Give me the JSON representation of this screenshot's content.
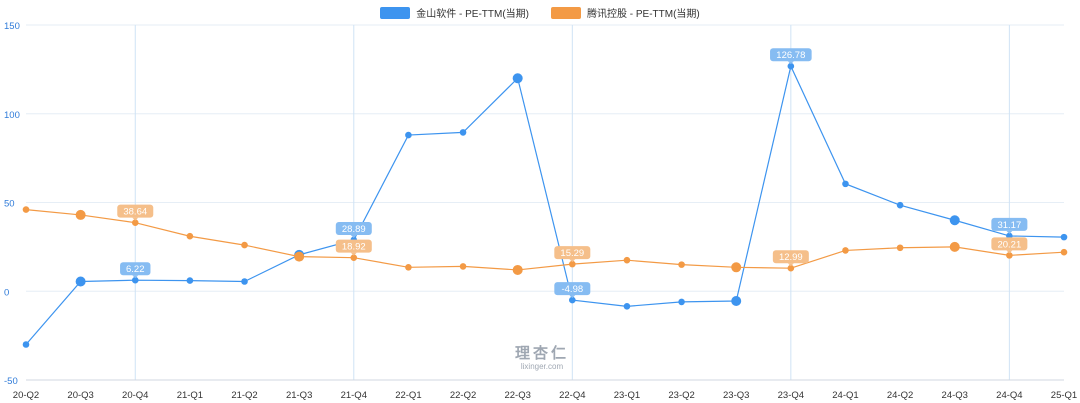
{
  "legend": {
    "s0": "金山软件 - PE-TTM(当期)",
    "s1": "腾讯控股 - PE-TTM(当期)"
  },
  "watermark": {
    "name": "理杏仁",
    "url": "lixinger.com"
  },
  "colors": {
    "s0": "#3d94ef",
    "s1": "#f39a45",
    "label_s0": "#86bcf2",
    "label_s1": "#f5bf8a",
    "grid": "#e6eef6",
    "vgrid": "#cfe3f5"
  },
  "chart_data": {
    "type": "line",
    "title": "",
    "xlabel": "",
    "ylabel": "",
    "ylim": [
      -50,
      150
    ],
    "yticks": [
      -50,
      0,
      50,
      100,
      150
    ],
    "x": [
      "20-Q2",
      "20-Q3",
      "20-Q4",
      "21-Q1",
      "21-Q2",
      "21-Q3",
      "21-Q4",
      "22-Q1",
      "22-Q2",
      "22-Q3",
      "22-Q4",
      "23-Q1",
      "23-Q2",
      "23-Q3",
      "23-Q4",
      "24-Q1",
      "24-Q2",
      "24-Q3",
      "24-Q4",
      "25-Q1"
    ],
    "highlight_categories": [
      "20-Q4",
      "21-Q4",
      "22-Q4",
      "23-Q4",
      "24-Q4"
    ],
    "series": [
      {
        "name": "金山软件 - PE-TTM(当期)",
        "values": [
          -30,
          5.5,
          6.22,
          6,
          5.5,
          20.5,
          28.89,
          88,
          89.5,
          120,
          -4.98,
          -8.5,
          -6,
          -5.5,
          126.78,
          60.5,
          48.5,
          40,
          31.17,
          30.5
        ],
        "labels": {
          "2": "6.22",
          "6": "28.89",
          "10": "-4.98",
          "14": "126.78",
          "18": "31.17"
        },
        "big_points": [
          1,
          5,
          9,
          13,
          17
        ]
      },
      {
        "name": "腾讯控股 - PE-TTM(当期)",
        "values": [
          46,
          43,
          38.64,
          31,
          26,
          19.5,
          18.92,
          13.5,
          14,
          12,
          15.29,
          17.5,
          15,
          13.5,
          12.99,
          23,
          24.5,
          25,
          20.21,
          22
        ],
        "labels": {
          "2": "38.64",
          "6": "18.92",
          "10": "15.29",
          "14": "12.99",
          "18": "20.21"
        },
        "big_points": [
          1,
          5,
          9,
          13,
          17
        ]
      }
    ]
  }
}
